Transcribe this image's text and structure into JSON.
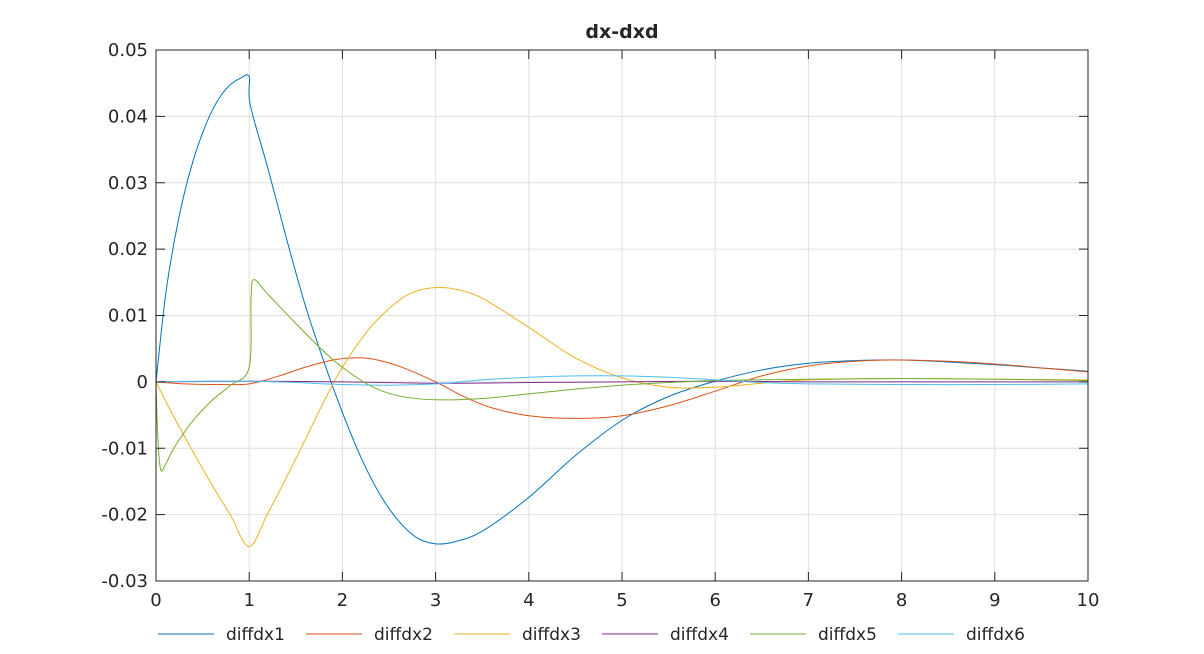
{
  "chart_data": {
    "type": "line",
    "title": "dx-dxd",
    "xlabel": "",
    "ylabel": "",
    "xlim": [
      0,
      10
    ],
    "ylim": [
      -0.03,
      0.05
    ],
    "xticks": [
      0,
      1,
      2,
      3,
      4,
      5,
      6,
      7,
      8,
      9,
      10
    ],
    "xtick_labels": [
      "0",
      "1",
      "2",
      "3",
      "4",
      "5",
      "6",
      "7",
      "8",
      "9",
      "10"
    ],
    "yticks": [
      -0.03,
      -0.02,
      -0.01,
      0,
      0.01,
      0.02,
      0.03,
      0.04,
      0.05
    ],
    "ytick_labels": [
      "-0.03",
      "-0.02",
      "-0.01",
      "0",
      "0.01",
      "0.02",
      "0.03",
      "0.04",
      "0.05"
    ],
    "grid": true,
    "legend_position": "bottom",
    "series": [
      {
        "name": "diffdx1",
        "color": "#0072BD",
        "points": [
          [
            0,
            0.0
          ],
          [
            0.1,
            0.0128
          ],
          [
            0.2,
            0.0215
          ],
          [
            0.3,
            0.0282
          ],
          [
            0.4,
            0.0334
          ],
          [
            0.5,
            0.0375
          ],
          [
            0.6,
            0.0408
          ],
          [
            0.7,
            0.0432
          ],
          [
            0.8,
            0.0448
          ],
          [
            0.9,
            0.0457
          ],
          [
            1.0,
            0.046
          ],
          [
            1.01,
            0.0418
          ],
          [
            1.2,
            0.0322
          ],
          [
            1.4,
            0.0216
          ],
          [
            1.6,
            0.0116
          ],
          [
            1.8,
            0.0031
          ],
          [
            2.0,
            -0.0046
          ],
          [
            2.2,
            -0.0114
          ],
          [
            2.4,
            -0.0169
          ],
          [
            2.6,
            -0.0209
          ],
          [
            2.8,
            -0.0235
          ],
          [
            3.0,
            -0.0244
          ],
          [
            3.2,
            -0.0241
          ],
          [
            3.5,
            -0.0225
          ],
          [
            4.0,
            -0.0174
          ],
          [
            4.5,
            -0.0111
          ],
          [
            5.0,
            -0.0058
          ],
          [
            5.5,
            -0.0022
          ],
          [
            6.0,
            0.0001
          ],
          [
            6.5,
            0.0018
          ],
          [
            7.0,
            0.0028
          ],
          [
            7.5,
            0.0032
          ],
          [
            8.0,
            0.0033
          ],
          [
            8.5,
            0.003
          ],
          [
            9.0,
            0.0026
          ],
          [
            9.5,
            0.0021
          ],
          [
            10.0,
            0.0016
          ]
        ]
      },
      {
        "name": "diffdx2",
        "color": "#D95319",
        "points": [
          [
            0,
            0.0
          ],
          [
            0.3,
            -0.0003
          ],
          [
            0.7,
            -0.0004
          ],
          [
            1.0,
            -0.0003
          ],
          [
            1.3,
            0.0008
          ],
          [
            1.6,
            0.0022
          ],
          [
            1.9,
            0.0033
          ],
          [
            2.1,
            0.0036
          ],
          [
            2.3,
            0.0035
          ],
          [
            2.6,
            0.0024
          ],
          [
            3.0,
            0.0
          ],
          [
            3.3,
            -0.0022
          ],
          [
            3.6,
            -0.0039
          ],
          [
            4.0,
            -0.0051
          ],
          [
            4.5,
            -0.0055
          ],
          [
            5.0,
            -0.0051
          ],
          [
            5.5,
            -0.0036
          ],
          [
            6.0,
            -0.0014
          ],
          [
            6.5,
            0.0009
          ],
          [
            7.0,
            0.0024
          ],
          [
            7.5,
            0.0031
          ],
          [
            8.0,
            0.0033
          ],
          [
            8.5,
            0.0031
          ],
          [
            9.0,
            0.0027
          ],
          [
            9.5,
            0.0021
          ],
          [
            10.0,
            0.0015
          ]
        ]
      },
      {
        "name": "diffdx3",
        "color": "#EDB120",
        "points": [
          [
            0,
            0.0
          ],
          [
            0.2,
            -0.0055
          ],
          [
            0.4,
            -0.0106
          ],
          [
            0.6,
            -0.0155
          ],
          [
            0.8,
            -0.0201
          ],
          [
            1.0,
            -0.0248
          ],
          [
            1.2,
            -0.0198
          ],
          [
            1.5,
            -0.0116
          ],
          [
            1.8,
            -0.003
          ],
          [
            2.0,
            0.0022
          ],
          [
            2.3,
            0.0082
          ],
          [
            2.6,
            0.0122
          ],
          [
            2.8,
            0.0137
          ],
          [
            3.0,
            0.0142
          ],
          [
            3.2,
            0.014
          ],
          [
            3.5,
            0.0126
          ],
          [
            4.0,
            0.0082
          ],
          [
            4.5,
            0.0036
          ],
          [
            5.0,
            0.0006
          ],
          [
            5.5,
            -0.0008
          ],
          [
            6.0,
            -0.0008
          ],
          [
            6.5,
            -0.0002
          ],
          [
            7.0,
            0.0003
          ],
          [
            8.0,
            0.0005
          ],
          [
            9.0,
            0.0004
          ],
          [
            10.0,
            0.0003
          ]
        ]
      },
      {
        "name": "diffdx4",
        "color": "#7E2F8E",
        "points": [
          [
            0,
            0.0
          ],
          [
            1.0,
            0.0001
          ],
          [
            2.0,
            0.0
          ],
          [
            3.0,
            -0.0002
          ],
          [
            4.0,
            -0.0001
          ],
          [
            5.0,
            0.0
          ],
          [
            6.0,
            0.0001
          ],
          [
            7.0,
            0.0
          ],
          [
            8.0,
            0.0
          ],
          [
            9.0,
            0.0
          ],
          [
            10.0,
            0.0
          ]
        ]
      },
      {
        "name": "diffdx5",
        "color": "#77AC30",
        "points": [
          [
            0,
            0.0
          ],
          [
            0.02,
            -0.0085
          ],
          [
            0.05,
            -0.0132
          ],
          [
            0.1,
            -0.0125
          ],
          [
            0.2,
            -0.0098
          ],
          [
            0.4,
            -0.0058
          ],
          [
            0.6,
            -0.0028
          ],
          [
            0.8,
            -0.0005
          ],
          [
            1.0,
            0.0022
          ],
          [
            1.02,
            0.0125
          ],
          [
            1.05,
            0.0154
          ],
          [
            1.2,
            0.0132
          ],
          [
            1.5,
            0.0088
          ],
          [
            1.8,
            0.0046
          ],
          [
            2.0,
            0.0022
          ],
          [
            2.3,
            -0.0006
          ],
          [
            2.6,
            -0.0021
          ],
          [
            3.0,
            -0.0027
          ],
          [
            3.5,
            -0.0025
          ],
          [
            4.0,
            -0.0018
          ],
          [
            4.5,
            -0.0011
          ],
          [
            5.0,
            -0.0005
          ],
          [
            5.5,
            -0.0001
          ],
          [
            6.0,
            0.0002
          ],
          [
            7.0,
            0.0004
          ],
          [
            8.0,
            0.0005
          ],
          [
            9.0,
            0.0004
          ],
          [
            10.0,
            0.0002
          ]
        ]
      },
      {
        "name": "diffdx6",
        "color": "#4DBEEE",
        "points": [
          [
            0,
            0.0
          ],
          [
            0.5,
            0.0001
          ],
          [
            1.0,
            0.0001
          ],
          [
            1.5,
            -0.0001
          ],
          [
            2.0,
            -0.0004
          ],
          [
            2.5,
            -0.0005
          ],
          [
            3.0,
            -0.0003
          ],
          [
            3.5,
            0.0003
          ],
          [
            4.0,
            0.0007
          ],
          [
            4.5,
            0.0009
          ],
          [
            5.0,
            0.0009
          ],
          [
            5.5,
            0.0007
          ],
          [
            6.0,
            0.0003
          ],
          [
            6.5,
            -0.0001
          ],
          [
            7.0,
            -0.0003
          ],
          [
            8.0,
            -0.0004
          ],
          [
            9.0,
            -0.0004
          ],
          [
            10.0,
            -0.0003
          ]
        ]
      }
    ]
  }
}
